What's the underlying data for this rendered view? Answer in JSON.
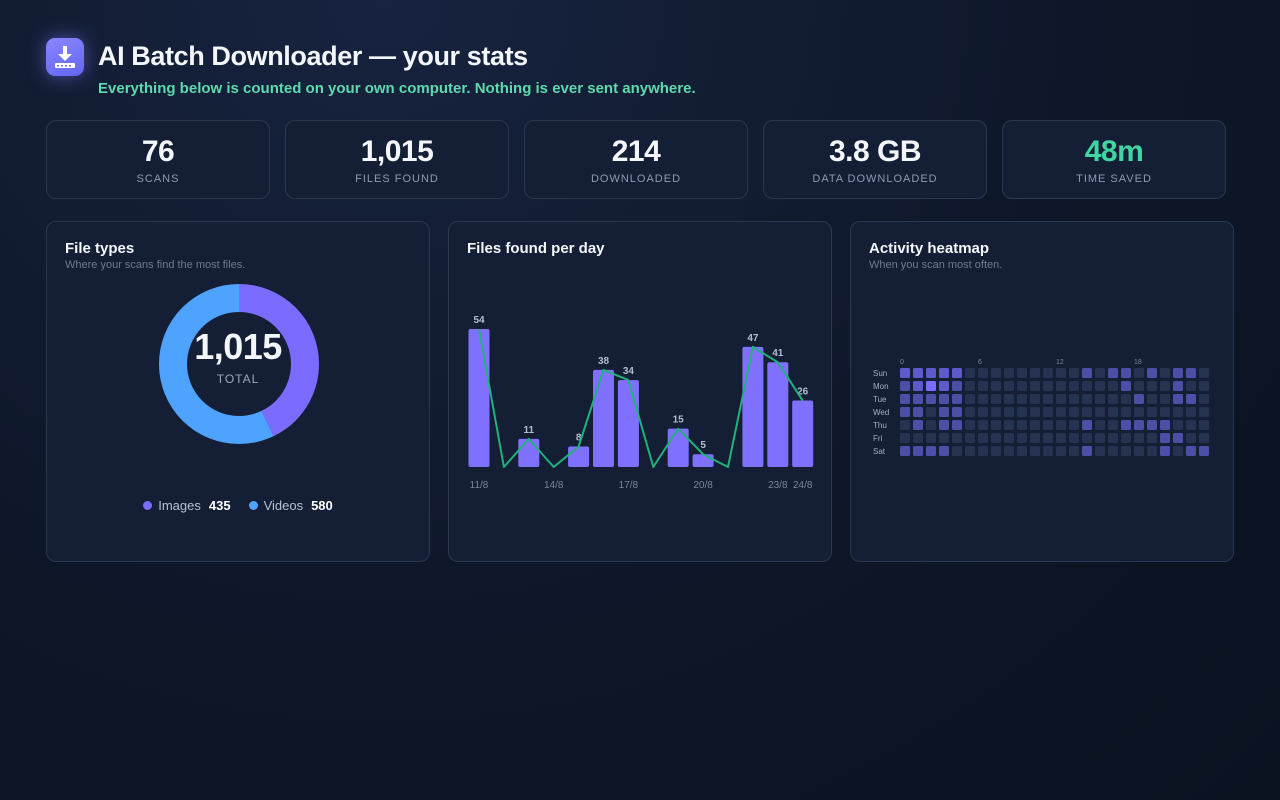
{
  "header": {
    "title": "AI Batch Downloader — your stats",
    "subtitle": "Everything below is counted on your own computer. Nothing is ever sent anywhere.",
    "icon": "download-icon"
  },
  "stats": [
    {
      "value": "76",
      "label": "SCANS"
    },
    {
      "value": "1,015",
      "label": "FILES FOUND"
    },
    {
      "value": "214",
      "label": "DOWNLOADED"
    },
    {
      "value": "3.8 GB",
      "label": "DATA DOWNLOADED"
    },
    {
      "value": "48m",
      "label": "TIME SAVED"
    }
  ],
  "colors": {
    "accent": "#7b6cff",
    "blue": "#4ea3ff",
    "green": "#3fd6a3"
  },
  "file_types": {
    "title": "File types",
    "subtitle": "Where your scans find the most files.",
    "total_value": "1,015",
    "total_label": "TOTAL",
    "items": [
      {
        "name": "Images",
        "value": "435",
        "color": "#7b6cff"
      },
      {
        "name": "Videos",
        "value": "580",
        "color": "#4ea3ff"
      }
    ]
  },
  "per_day": {
    "title": "Files found per day"
  },
  "heatmap": {
    "title": "Activity heatmap",
    "subtitle": "When you scan most often.",
    "days": [
      "Sun",
      "Mon",
      "Tue",
      "Wed",
      "Thu",
      "Fri",
      "Sat"
    ],
    "hour_labels": [
      "0",
      "6",
      "12",
      "18"
    ]
  },
  "chart_data": [
    {
      "type": "pie",
      "title": "File types",
      "categories": [
        "Images",
        "Videos"
      ],
      "values": [
        435,
        580
      ],
      "colors": [
        "#7b6cff",
        "#4ea3ff"
      ]
    },
    {
      "type": "bar",
      "title": "Files found per day",
      "categories": [
        "11/8",
        "12/8",
        "13/8",
        "14/8",
        "15/8",
        "16/8",
        "17/8",
        "18/8",
        "19/8",
        "20/8",
        "21/8",
        "22/8",
        "23/8",
        "24/8"
      ],
      "tick_labels": [
        "11/8",
        "14/8",
        "17/8",
        "20/8",
        "23/8",
        "24/8"
      ],
      "values": [
        54,
        0,
        11,
        0,
        8,
        38,
        34,
        0,
        15,
        5,
        0,
        47,
        41,
        26
      ],
      "line_overlay": true,
      "colors": {
        "bar": "#8070ff",
        "line": "#22b07d"
      }
    },
    {
      "type": "heatmap",
      "title": "Activity heatmap",
      "rows": [
        "Sun",
        "Mon",
        "Tue",
        "Wed",
        "Thu",
        "Fri",
        "Sat"
      ],
      "columns": [
        0,
        1,
        2,
        3,
        4,
        5,
        6,
        7,
        8,
        9,
        10,
        11,
        12,
        13,
        14,
        15,
        16,
        17,
        18,
        19,
        20,
        21,
        22,
        23
      ],
      "levels": [
        [
          2,
          2,
          2,
          2,
          2,
          0,
          0,
          0,
          0,
          0,
          0,
          0,
          0,
          0,
          1,
          0,
          1,
          1,
          0,
          1,
          0,
          1,
          1,
          0
        ],
        [
          1,
          2,
          3,
          2,
          1,
          0,
          0,
          0,
          0,
          0,
          0,
          0,
          0,
          0,
          0,
          0,
          0,
          1,
          0,
          0,
          0,
          1,
          0,
          0
        ],
        [
          1,
          1,
          1,
          1,
          1,
          0,
          0,
          0,
          0,
          0,
          0,
          0,
          0,
          0,
          0,
          0,
          0,
          0,
          1,
          0,
          0,
          1,
          1,
          0
        ],
        [
          1,
          1,
          0,
          1,
          1,
          0,
          0,
          0,
          0,
          0,
          0,
          0,
          0,
          0,
          0,
          0,
          0,
          0,
          0,
          0,
          0,
          0,
          0,
          0
        ],
        [
          0,
          1,
          0,
          1,
          1,
          0,
          0,
          0,
          0,
          0,
          0,
          0,
          0,
          0,
          1,
          0,
          0,
          1,
          1,
          1,
          1,
          0,
          0,
          0
        ],
        [
          0,
          0,
          0,
          0,
          0,
          0,
          0,
          0,
          0,
          0,
          0,
          0,
          0,
          0,
          0,
          0,
          0,
          0,
          0,
          0,
          1,
          1,
          0,
          0
        ],
        [
          1,
          1,
          1,
          1,
          0,
          0,
          0,
          0,
          0,
          0,
          0,
          0,
          0,
          0,
          1,
          0,
          0,
          0,
          0,
          0,
          1,
          0,
          1,
          1
        ]
      ],
      "level_colors": [
        "#253250",
        "#4b4fa5",
        "#5e5ac9",
        "#7e6cff"
      ]
    }
  ]
}
